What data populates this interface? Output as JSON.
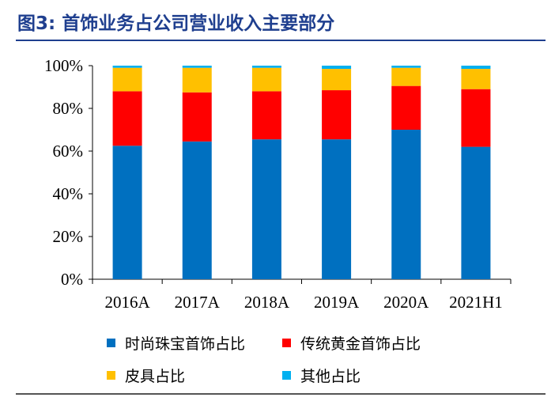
{
  "figure": {
    "title": "图3:  首饰业务占公司营业收入主要部分"
  },
  "chart_data": {
    "type": "bar",
    "stacked": true,
    "title": "",
    "xlabel": "",
    "ylabel": "",
    "ylim": [
      0,
      100
    ],
    "yticks": [
      "0%",
      "20%",
      "40%",
      "60%",
      "80%",
      "100%"
    ],
    "ytick_values": [
      0,
      20,
      40,
      60,
      80,
      100
    ],
    "categories": [
      "2016A",
      "2017A",
      "2018A",
      "2019A",
      "2020A",
      "2021H1"
    ],
    "series": [
      {
        "name": "时尚珠宝首饰占比",
        "color": "#0070c0",
        "values": [
          62.5,
          64.5,
          65.5,
          65.5,
          70.0,
          62.0
        ]
      },
      {
        "name": "传统黄金首饰占比",
        "color": "#ff0000",
        "values": [
          25.5,
          23.0,
          22.5,
          23.0,
          20.5,
          27.0
        ]
      },
      {
        "name": "皮具占比",
        "color": "#ffc000",
        "values": [
          11.0,
          11.5,
          11.0,
          10.0,
          8.5,
          9.5
        ]
      },
      {
        "name": "其他占比",
        "color": "#00b0f0",
        "values": [
          1.0,
          1.0,
          1.0,
          1.5,
          1.0,
          1.5
        ]
      }
    ],
    "legend_position": "bottom"
  }
}
